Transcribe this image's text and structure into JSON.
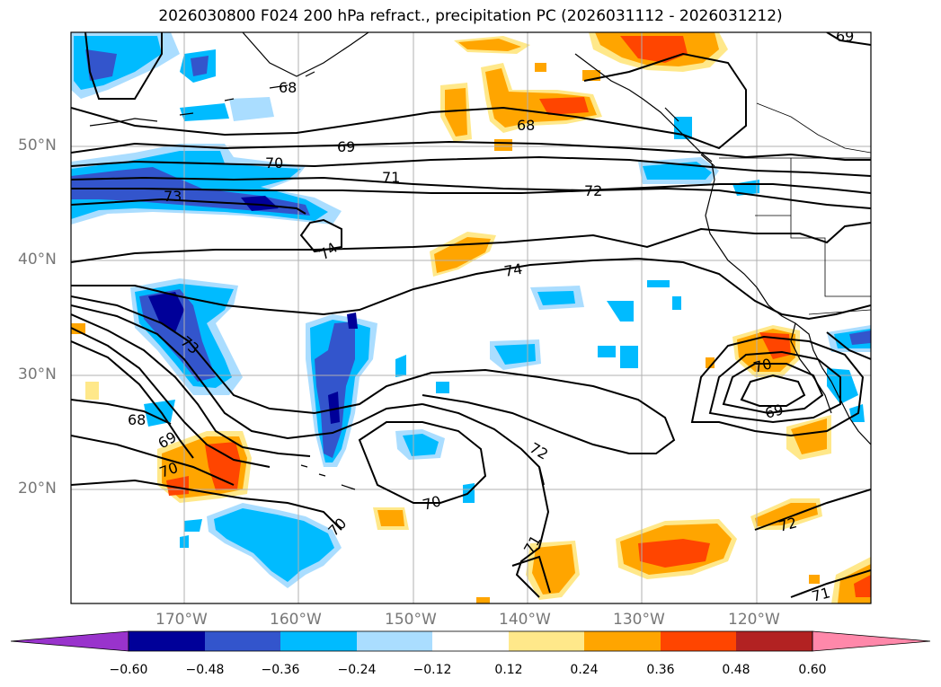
{
  "title": "2026030800 F024 200 hPa refract., precipitation PC (2026031112 - 2026031212)",
  "lat_labels": [
    "50°N",
    "40°N",
    "30°N",
    "20°N"
  ],
  "lon_labels": [
    "170°W",
    "160°W",
    "150°W",
    "140°W",
    "130°W",
    "120°W"
  ],
  "contour_labels": [
    "69",
    "68",
    "68",
    "69",
    "70",
    "71",
    "72",
    "73",
    "74",
    "74",
    "73",
    "68",
    "69",
    "70",
    "70",
    "70",
    "72",
    "71",
    "70",
    "69",
    "72",
    "71"
  ],
  "colorbar": {
    "tick_labels": [
      "−0.60",
      "−0.48",
      "−0.36",
      "−0.24",
      "−0.12",
      "0.12",
      "0.24",
      "0.36",
      "0.48",
      "0.60"
    ],
    "colors": [
      "#9933cc",
      "#000099",
      "#3355cc",
      "#00bbff",
      "#aaddff",
      "#ffffff",
      "#ffe88a",
      "#ffa500",
      "#ff4500",
      "#b22222",
      "#ff88aa"
    ]
  },
  "colors": {
    "coast": "#000000",
    "contour": "#000000",
    "grid": "#b0b0b0"
  }
}
